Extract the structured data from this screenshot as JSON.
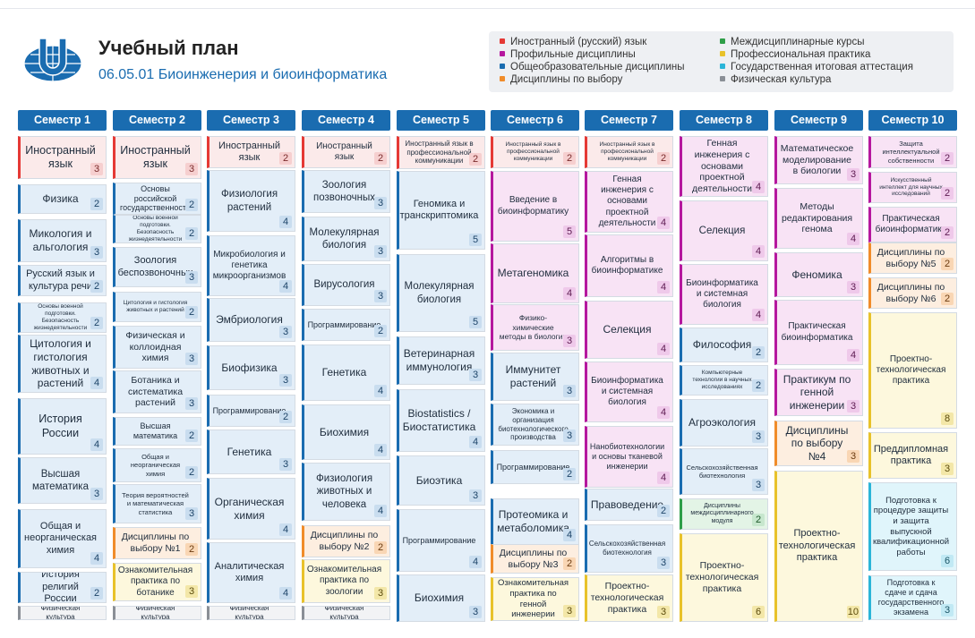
{
  "header": {
    "title": "Учебный план",
    "subtitle": "06.05.01 Биоинженерия и биоинформатика",
    "logo_icon": "university-globe-logo-icon"
  },
  "colors": {
    "foreign_language": "#e53935",
    "professional": "#b5179e",
    "general": "#1a6cb0",
    "electives": "#f08c2a",
    "interdisciplinary": "#2e9e48",
    "practice": "#e8c22a",
    "state_attestation": "#2bb5d8",
    "physical_culture": "#8a8f96"
  },
  "legend": [
    {
      "label": "Иностранный (русский) язык",
      "color": "#e53935"
    },
    {
      "label": "Профильные дисциплины",
      "color": "#b5179e"
    },
    {
      "label": "Общеобразовательные дисциплины",
      "color": "#1a6cb0"
    },
    {
      "label": "Дисциплины по выбору",
      "color": "#f08c2a"
    },
    {
      "label": "Междисциплинарные курсы",
      "color": "#2e9e48"
    },
    {
      "label": "Профессиональная практика",
      "color": "#e8c22a"
    },
    {
      "label": "Государственная итоговая аттестация",
      "color": "#2bb5d8"
    },
    {
      "label": "Физическая культура",
      "color": "#8a8f96"
    }
  ],
  "semesters": [
    {
      "label": "Семестр 1",
      "courses": [
        {
          "name": "Иностранный язык",
          "credits": "3",
          "type": "lang"
        },
        {
          "name": "Физика",
          "credits": "2",
          "type": "gen"
        },
        {
          "name": "Микология и альгология",
          "credits": "3",
          "type": "gen"
        },
        {
          "name": "Русский язык и культура речи",
          "credits": "2",
          "type": "gen"
        },
        {
          "name": "Основы военной подготовки. Безопасность жизнедеятельности",
          "credits": "2",
          "type": "gen"
        },
        {
          "name": "Цитология и гистология животных и растений",
          "credits": "4",
          "type": "gen"
        },
        {
          "name": "История России",
          "credits": "4",
          "type": "gen"
        },
        {
          "name": "Высшая математика",
          "credits": "3",
          "type": "gen"
        },
        {
          "name": "Общая и неорганическая химия",
          "credits": "4",
          "type": "gen"
        },
        {
          "name": "История религий России",
          "credits": "2",
          "type": "gen"
        },
        {
          "name": "Физическая культура",
          "credits": "",
          "type": "pe"
        }
      ]
    },
    {
      "label": "Семестр 2",
      "courses": [
        {
          "name": "Иностранный язык",
          "credits": "3",
          "type": "lang"
        },
        {
          "name": "Основы российской государственности",
          "credits": "2",
          "type": "gen"
        },
        {
          "name": "Основы военной подготовки. Безопасность жизнедеятельности",
          "credits": "2",
          "type": "gen"
        },
        {
          "name": "Зоология беспозвоночных",
          "credits": "3",
          "type": "gen"
        },
        {
          "name": "Цитология и гистология животных и растений",
          "credits": "2",
          "type": "gen"
        },
        {
          "name": "Физическая и коллоидная химия",
          "credits": "3",
          "type": "gen"
        },
        {
          "name": "Ботаника и систематика растений",
          "credits": "3",
          "type": "gen"
        },
        {
          "name": "Высшая математика",
          "credits": "2",
          "type": "gen"
        },
        {
          "name": "Общая и неорганическая химия",
          "credits": "2",
          "type": "gen"
        },
        {
          "name": "Теория вероятностей и математическая статистика",
          "credits": "3",
          "type": "gen"
        },
        {
          "name": "Дисциплины по выбору №1",
          "credits": "2",
          "type": "elect"
        },
        {
          "name": "Ознакомительная практика по ботанике",
          "credits": "3",
          "type": "prac"
        },
        {
          "name": "Физическая культура",
          "credits": "",
          "type": "pe"
        }
      ]
    },
    {
      "label": "Семестр 3",
      "courses": [
        {
          "name": "Иностранный язык",
          "credits": "2",
          "type": "lang"
        },
        {
          "name": "Физиология растений",
          "credits": "4",
          "type": "gen"
        },
        {
          "name": "Микробиология и генетика микроорганизмов",
          "credits": "4",
          "type": "gen"
        },
        {
          "name": "Эмбриология",
          "credits": "3",
          "type": "gen"
        },
        {
          "name": "Биофизика",
          "credits": "3",
          "type": "gen"
        },
        {
          "name": "Программирование",
          "credits": "2",
          "type": "gen"
        },
        {
          "name": "Генетика",
          "credits": "3",
          "type": "gen"
        },
        {
          "name": "Органическая химия",
          "credits": "4",
          "type": "gen"
        },
        {
          "name": "Аналитическая химия",
          "credits": "4",
          "type": "gen"
        },
        {
          "name": "Физическая культура",
          "credits": "",
          "type": "pe"
        }
      ]
    },
    {
      "label": "Семестр 4",
      "courses": [
        {
          "name": "Иностранный язык",
          "credits": "2",
          "type": "lang"
        },
        {
          "name": "Зоология позвоночных",
          "credits": "3",
          "type": "gen"
        },
        {
          "name": "Молекулярная биология",
          "credits": "3",
          "type": "gen"
        },
        {
          "name": "Вирусология",
          "credits": "3",
          "type": "gen"
        },
        {
          "name": "Программирование",
          "credits": "2",
          "type": "gen"
        },
        {
          "name": "Генетика",
          "credits": "4",
          "type": "gen"
        },
        {
          "name": "Биохимия",
          "credits": "4",
          "type": "gen"
        },
        {
          "name": "Физиология животных и человека",
          "credits": "4",
          "type": "gen"
        },
        {
          "name": "Дисциплины по выбору №2",
          "credits": "2",
          "type": "elect"
        },
        {
          "name": "Ознакомительная практика по зоологии",
          "credits": "3",
          "type": "prac"
        },
        {
          "name": "Физическая культура",
          "credits": "",
          "type": "pe"
        }
      ]
    },
    {
      "label": "Семестр 5",
      "courses": [
        {
          "name": "Иностранный язык в профессиональной коммуникации",
          "credits": "2",
          "type": "lang"
        },
        {
          "name": "Геномика и транскриптомика",
          "credits": "5",
          "type": "gen"
        },
        {
          "name": "Молекулярная биология",
          "credits": "5",
          "type": "gen"
        },
        {
          "name": "Ветеринарная иммунология",
          "credits": "3",
          "type": "gen"
        },
        {
          "name": "Biostatistics / Биостатистика",
          "credits": "4",
          "type": "gen"
        },
        {
          "name": "Биоэтика",
          "credits": "3",
          "type": "gen"
        },
        {
          "name": "Программирование",
          "credits": "4",
          "type": "gen"
        },
        {
          "name": "Биохимия",
          "credits": "3",
          "type": "gen"
        }
      ]
    },
    {
      "label": "Семестр 6",
      "courses": [
        {
          "name": "Иностранный язык в профессиональной коммуникации",
          "credits": "2",
          "type": "lang"
        },
        {
          "name": "Введение в биоинформатику",
          "credits": "5",
          "type": "prof"
        },
        {
          "name": "Метагеномика",
          "credits": "4",
          "type": "prof"
        },
        {
          "name": "Физико-химические методы в биологии",
          "credits": "3",
          "type": "prof"
        },
        {
          "name": "Иммунитет растений",
          "credits": "3",
          "type": "gen"
        },
        {
          "name": "Экономика и организация биотехнологического производства",
          "credits": "3",
          "type": "gen"
        },
        {
          "name": "Программирование",
          "credits": "2",
          "type": "gen"
        },
        {
          "name": "Протеомика и метаболомика",
          "credits": "4",
          "type": "gen"
        },
        {
          "name": "Дисциплины по выбору №3",
          "credits": "2",
          "type": "elect"
        },
        {
          "name": "Ознакомительная практика по генной инженерии",
          "credits": "3",
          "type": "prac"
        }
      ]
    },
    {
      "label": "Семестр 7",
      "courses": [
        {
          "name": "Иностранный язык в профессиональной коммуникации",
          "credits": "2",
          "type": "lang"
        },
        {
          "name": "Генная инженерия с основами проектной деятельности",
          "credits": "4",
          "type": "prof"
        },
        {
          "name": "Алгоритмы в биоинформатике",
          "credits": "4",
          "type": "prof"
        },
        {
          "name": "Селекция",
          "credits": "4",
          "type": "prof"
        },
        {
          "name": "Биоинформатика и системная биология",
          "credits": "4",
          "type": "prof"
        },
        {
          "name": "Нанобиотехнологии и основы тканевой инженерии",
          "credits": "4",
          "type": "prof"
        },
        {
          "name": "Правоведение",
          "credits": "2",
          "type": "gen"
        },
        {
          "name": "Сельскохозяйственная биотехнология",
          "credits": "3",
          "type": "gen"
        },
        {
          "name": "Проектно-технологическая практика",
          "credits": "3",
          "type": "prac"
        }
      ]
    },
    {
      "label": "Семестр 8",
      "courses": [
        {
          "name": "Генная инженерия с основами проектной деятельности",
          "credits": "4",
          "type": "prof"
        },
        {
          "name": "Селекция",
          "credits": "4",
          "type": "prof"
        },
        {
          "name": "Биоинформатика и системная биология",
          "credits": "4",
          "type": "prof"
        },
        {
          "name": "Философия",
          "credits": "2",
          "type": "gen"
        },
        {
          "name": "Компьютерные технологии в научных исследованиях",
          "credits": "2",
          "type": "gen"
        },
        {
          "name": "Агроэкология",
          "credits": "3",
          "type": "gen"
        },
        {
          "name": "Сельскохозяйственная биотехнология",
          "credits": "3",
          "type": "gen"
        },
        {
          "name": "Дисциплины междисциплинарного модуля",
          "credits": "2",
          "type": "inter"
        },
        {
          "name": "Проектно-технологическая практика",
          "credits": "6",
          "type": "prac"
        }
      ]
    },
    {
      "label": "Семестр 9",
      "courses": [
        {
          "name": "Математическое моделирование в биологии",
          "credits": "3",
          "type": "prof"
        },
        {
          "name": "Методы редактирования генома",
          "credits": "4",
          "type": "prof"
        },
        {
          "name": "Феномика",
          "credits": "3",
          "type": "prof"
        },
        {
          "name": "Практическая биоинформатика",
          "credits": "4",
          "type": "prof"
        },
        {
          "name": "Практикум по генной инженерии",
          "credits": "3",
          "type": "prof"
        },
        {
          "name": "Дисциплины по выбору №4",
          "credits": "3",
          "type": "elect"
        },
        {
          "name": "Проектно-технологическая практика",
          "credits": "10",
          "type": "prac"
        }
      ]
    },
    {
      "label": "Семестр 10",
      "courses": [
        {
          "name": "Защита интеллектуальной собственности",
          "credits": "2",
          "type": "prof"
        },
        {
          "name": "Искусственный интеллект для научных исследований",
          "credits": "2",
          "type": "prof"
        },
        {
          "name": "Практическая биоинформатика",
          "credits": "2",
          "type": "prof"
        },
        {
          "name": "Дисциплины по выбору №5",
          "credits": "2",
          "type": "elect"
        },
        {
          "name": "Дисциплины по выбору №6",
          "credits": "2",
          "type": "elect"
        },
        {
          "name": "Проектно-технологическая практика",
          "credits": "8",
          "type": "prac"
        },
        {
          "name": "Преддипломная практика",
          "credits": "3",
          "type": "prac"
        },
        {
          "name": "Подготовка к процедуре защиты и защита выпускной квалификационной работы",
          "credits": "6",
          "type": "gia"
        },
        {
          "name": "Подготовка к сдаче и сдача государственного экзамена",
          "credits": "3",
          "type": "gia"
        }
      ]
    }
  ]
}
